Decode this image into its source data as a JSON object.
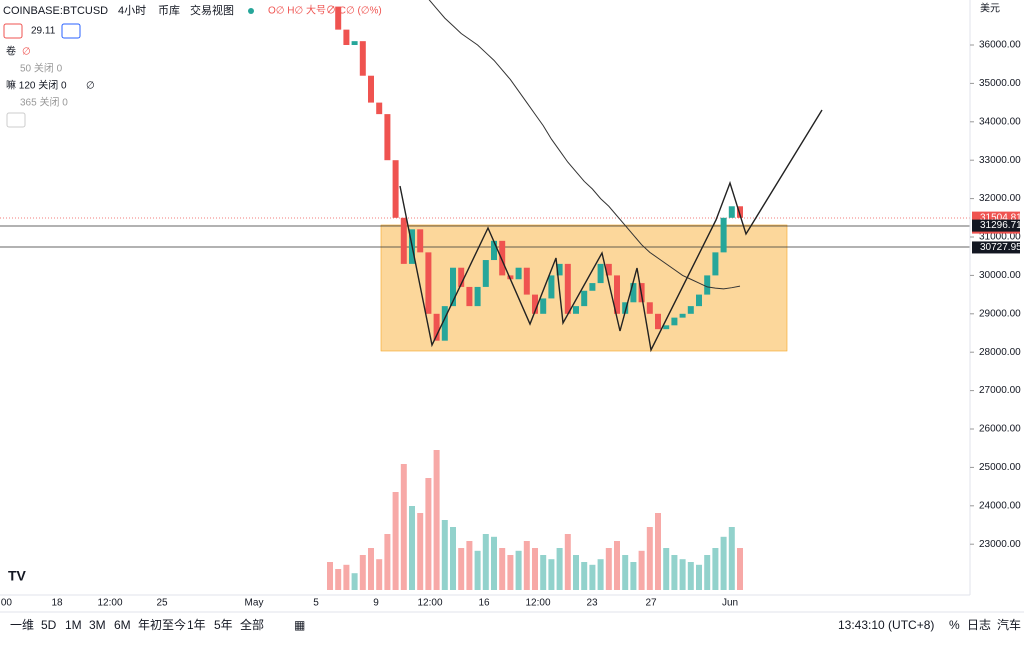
{
  "header": {
    "symbol": "COINBASE:BTCUSD",
    "interval": "4小时",
    "exchange": "币库",
    "source": "交易视图",
    "ohlc": "O∅ H∅ 大号∅ C∅ (∅%)",
    "value": "29.11"
  },
  "indicators": [
    {
      "name": "卷",
      "value": "∅"
    },
    {
      "name": "50 关闭 0"
    },
    {
      "name": "嘛 120 关闭 0",
      "value": "∅"
    },
    {
      "name": "365 关闭 0"
    }
  ],
  "chart_data": {
    "type": "candlestick",
    "currency": "美元",
    "ylim": [
      22500,
      37200
    ],
    "yticks": [
      {
        "value": 23000,
        "label": "23000.00"
      },
      {
        "value": 24000,
        "label": "24000.00"
      },
      {
        "value": 25000,
        "label": "25000.00"
      },
      {
        "value": 26000,
        "label": "26000.00"
      },
      {
        "value": 27000,
        "label": "27000.00"
      },
      {
        "value": 28000,
        "label": "28000.00"
      },
      {
        "value": 29000,
        "label": "29000.00"
      },
      {
        "value": 30000,
        "label": "30000.00"
      },
      {
        "value": 31000,
        "label": "31000.00"
      },
      {
        "value": 32000,
        "label": "32000.00"
      },
      {
        "value": 33000,
        "label": "33000.00"
      },
      {
        "value": 34000,
        "label": "34000.00"
      },
      {
        "value": 35000,
        "label": "35000.00"
      },
      {
        "value": 36000,
        "label": "36000.00"
      }
    ],
    "closes": [
      37000,
      36400,
      36000,
      36100,
      35200,
      34500,
      34200,
      33000,
      31500,
      30300,
      31200,
      30600,
      29000,
      28300,
      29200,
      30200,
      29700,
      29200,
      29700,
      30400,
      30900,
      30000,
      29900,
      30200,
      29500,
      29000,
      29400,
      30000,
      30300,
      29000,
      29200,
      29600,
      29800,
      30300,
      30000,
      29000,
      29300,
      29800,
      29300,
      29000,
      28600,
      28700,
      28900,
      29000,
      29200,
      29500,
      30000,
      30600,
      31500,
      31800,
      31500
    ],
    "volume": [
      20,
      15,
      18,
      12,
      25,
      30,
      22,
      40,
      70,
      90,
      60,
      55,
      80,
      100,
      50,
      45,
      30,
      35,
      28,
      40,
      38,
      30,
      25,
      28,
      35,
      30,
      25,
      22,
      30,
      40,
      25,
      20,
      18,
      22,
      30,
      35,
      25,
      20,
      28,
      45,
      55,
      30,
      25,
      22,
      20,
      18,
      25,
      30,
      38,
      45,
      30
    ],
    "ma": [
      null,
      null,
      null,
      null,
      null,
      null,
      null,
      null,
      null,
      null,
      null,
      null,
      37200,
      36950,
      36700,
      36500,
      36300,
      36150,
      36000,
      35800,
      35600,
      35350,
      35100,
      34800,
      34500,
      34200,
      33900,
      33550,
      33250,
      32950,
      32700,
      32450,
      32250,
      32000,
      31800,
      31550,
      31300,
      31050,
      30800,
      30600,
      30450,
      30300,
      30150,
      30000,
      29900,
      29800,
      29700,
      29670,
      29650,
      29680,
      29720
    ],
    "price_tags": [
      {
        "value": 31504.81,
        "label": "31504.81"
      },
      {
        "value": 31296.71,
        "label": "31296.71"
      },
      {
        "value": 30727.95,
        "label": "30727.95"
      }
    ],
    "countdown": "02:16:50",
    "time_labels": [
      ":00",
      "18",
      "12:00",
      "25",
      "May",
      "5",
      "9",
      "12:00",
      "16",
      "12:00",
      "23",
      "27",
      "Jun"
    ]
  },
  "toolbar": {
    "ranges": [
      "一维",
      "5D",
      "1M",
      "3M",
      "6M",
      "年初至今",
      "1年",
      "5年",
      "全部"
    ],
    "clock": "13:43:10 (UTC+8)",
    "options": [
      "%",
      "日志",
      "汽车"
    ]
  }
}
